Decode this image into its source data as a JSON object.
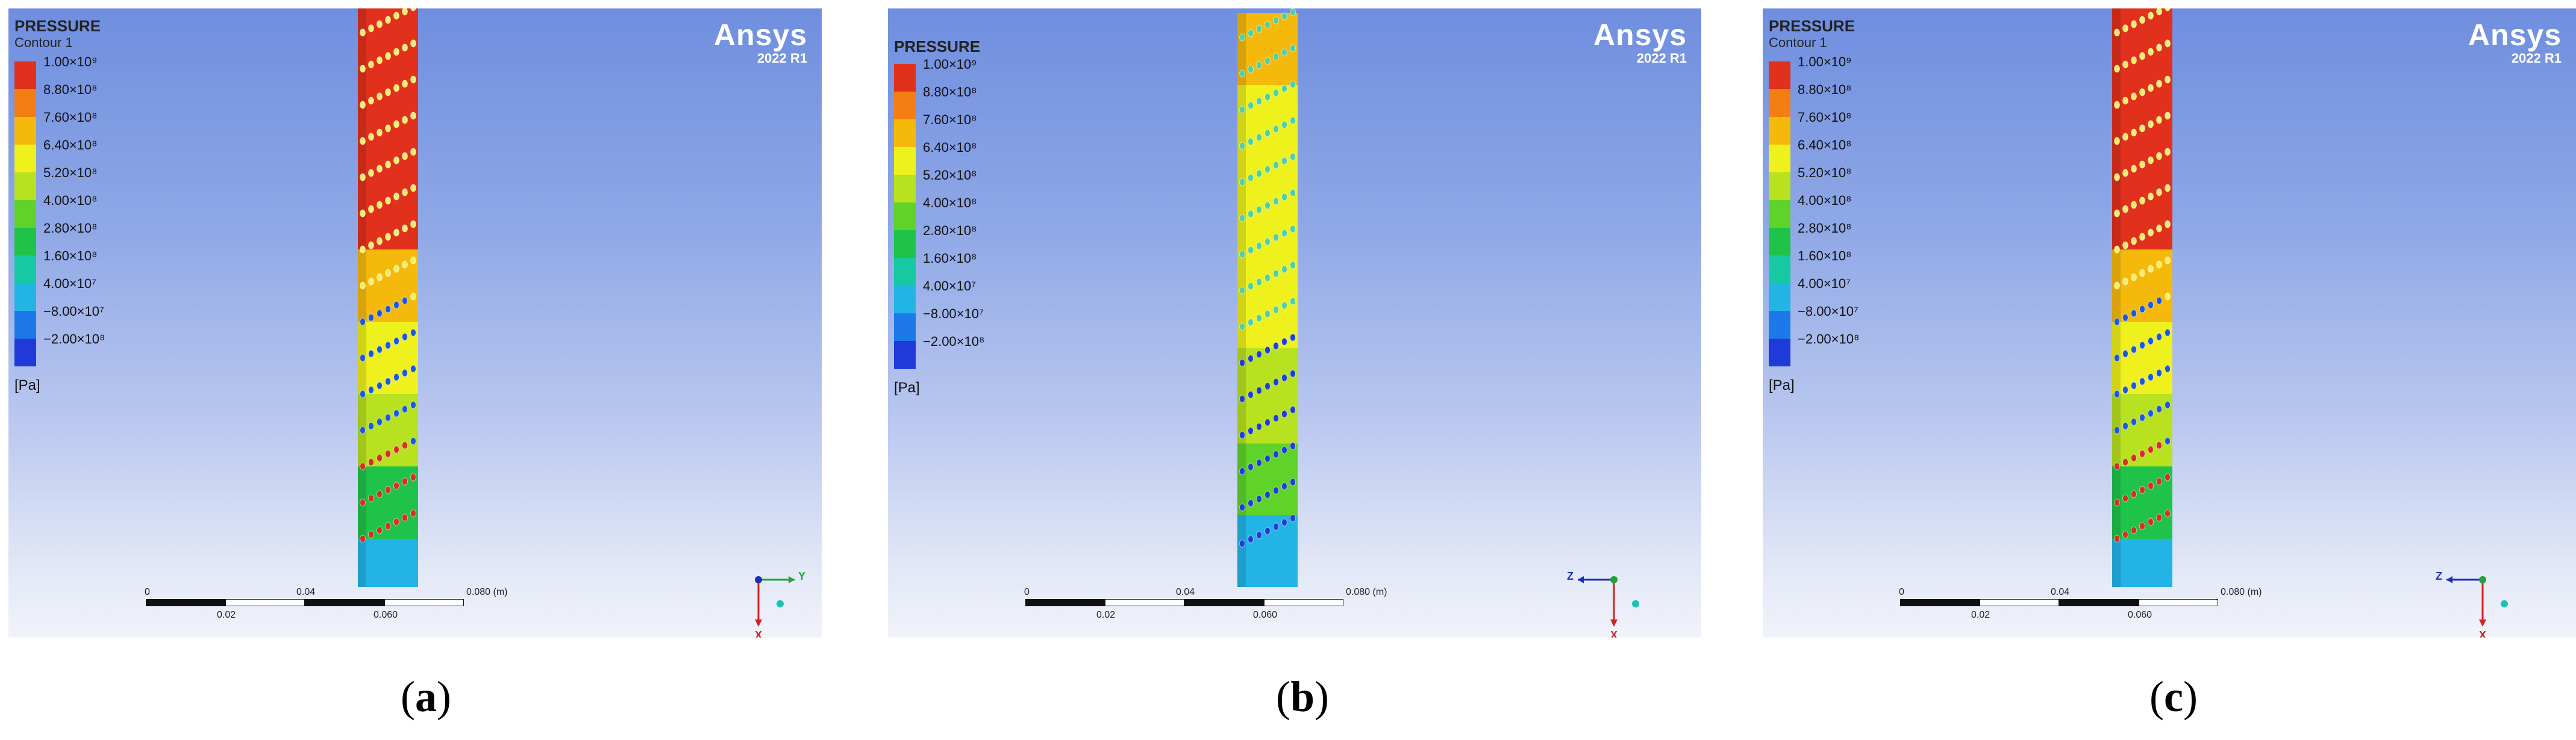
{
  "legend": {
    "title": "PRESSURE",
    "contour": "Contour 1",
    "unit": "[Pa]",
    "levels": [
      "1.00×10⁹",
      "8.80×10⁸",
      "7.60×10⁸",
      "6.40×10⁸",
      "5.20×10⁸",
      "4.00×10⁸",
      "2.80×10⁸",
      "1.60×10⁸",
      "4.00×10⁷",
      "−8.00×10⁷",
      "−2.00×10⁸"
    ],
    "colors": [
      "#e1301c",
      "#f37f12",
      "#f5b90c",
      "#eef11c",
      "#b8e11f",
      "#5fd32a",
      "#1fc34a",
      "#16c9a3",
      "#23b4e6",
      "#1d79e9",
      "#1f3ad9"
    ]
  },
  "brand": {
    "name": "Ansys",
    "version": "2022 R1"
  },
  "scale": {
    "ticks_top": [
      "0",
      "0.04",
      "0.080 (m)"
    ],
    "ticks_bottom": [
      "0.02",
      "0.060"
    ]
  },
  "panels": [
    {
      "id": "a",
      "caption": "a",
      "title_gap": false,
      "triad": {
        "horizontal_axis": "Y",
        "vertical_axis": "X",
        "horizontal_dir": "right",
        "horizontal_color": "#1fa33a"
      }
    },
    {
      "id": "b",
      "caption": "b",
      "title_gap": true,
      "triad": {
        "horizontal_axis": "Z",
        "vertical_axis": "X",
        "horizontal_dir": "left",
        "horizontal_color": "#1c2fb8"
      }
    },
    {
      "id": "c",
      "caption": "c",
      "title_gap": false,
      "triad": {
        "horizontal_axis": "Z",
        "vertical_axis": "X",
        "horizontal_dir": "left",
        "horizontal_color": "#1c2fb8"
      }
    }
  ]
}
